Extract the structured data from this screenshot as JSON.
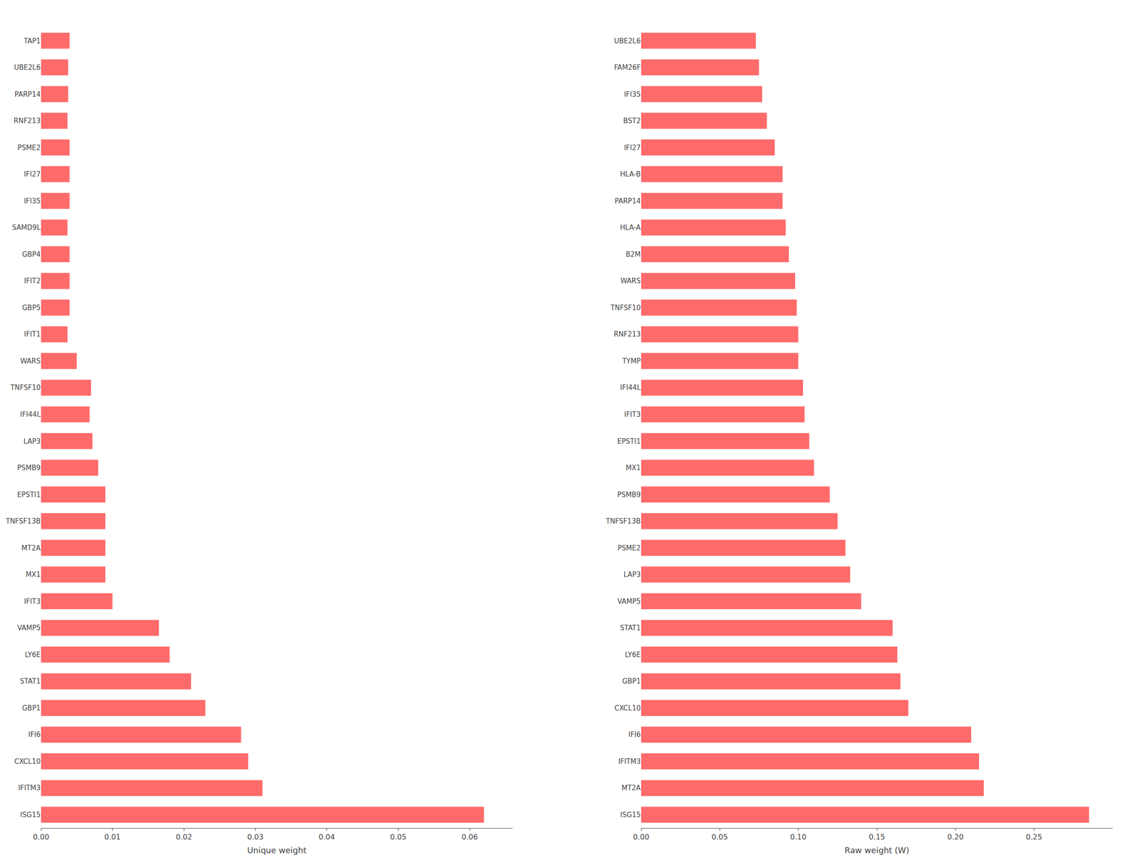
{
  "chart_data": [
    {
      "type": "bar",
      "orientation": "horizontal",
      "categories": [
        "TAP1",
        "UBE2L6",
        "PARP14",
        "RNF213",
        "PSME2",
        "IFI27",
        "IFI35",
        "SAMD9L",
        "GBP4",
        "IFIT2",
        "GBP5",
        "IFIT1",
        "WARS",
        "TNFSF10",
        "IFI44L",
        "LAP3",
        "PSMB9",
        "EPSTI1",
        "TNFSF13B",
        "MT2A",
        "MX1",
        "IFIT3",
        "VAMP5",
        "LY6E",
        "STAT1",
        "GBP1",
        "IFI6",
        "CXCL10",
        "IFITM3",
        "ISG15"
      ],
      "values": [
        0.004,
        0.0038,
        0.0038,
        0.0037,
        0.004,
        0.004,
        0.004,
        0.0037,
        0.004,
        0.004,
        0.004,
        0.0037,
        0.005,
        0.007,
        0.0068,
        0.0072,
        0.008,
        0.009,
        0.009,
        0.009,
        0.009,
        0.01,
        0.0165,
        0.018,
        0.021,
        0.023,
        0.028,
        0.029,
        0.031,
        0.062
      ],
      "color": "#FF6B6B",
      "xlabel": "Unique weight",
      "xlim": [
        0,
        0.066
      ],
      "xticks": [
        {
          "value": 0,
          "label": "0.00"
        },
        0.01,
        0.02,
        0.03,
        0.04,
        0.05,
        0.06
      ],
      "grid": false
    },
    {
      "type": "bar",
      "orientation": "horizontal",
      "categories": [
        "UBE2L6",
        "FAM26F",
        "IFI35",
        "BST2",
        "IFI27",
        "HLA-B",
        "PARP14",
        "HLA-A",
        "B2M",
        "WARS",
        "TNFSF10",
        "RNF213",
        "TYMP",
        "IFI44L",
        "IFIT3",
        "EPSTI1",
        "MX1",
        "PSMB9",
        "TNFSF13B",
        "PSME2",
        "LAP3",
        "VAMP5",
        "STAT1",
        "LY6E",
        "GBP1",
        "CXCL10",
        "IFI6",
        "IFITM3",
        "MT2A",
        "ISG15"
      ],
      "values": [
        0.073,
        0.075,
        0.077,
        0.08,
        0.085,
        0.09,
        0.09,
        0.092,
        0.094,
        0.098,
        0.099,
        0.1,
        0.1,
        0.103,
        0.104,
        0.107,
        0.11,
        0.12,
        0.125,
        0.13,
        0.133,
        0.14,
        0.16,
        0.163,
        0.165,
        0.17,
        0.21,
        0.215,
        0.218,
        0.285
      ],
      "color": "#FF6B6B",
      "xlabel": "Raw weight (W)",
      "xlim": [
        0,
        0.3
      ],
      "xticks": [
        {
          "value": 0,
          "label": "0.00"
        },
        0.05,
        {
          "value": 0.1,
          "label": "0.10"
        },
        0.15,
        {
          "value": 0.2,
          "label": "0.20"
        },
        0.25
      ],
      "grid": false
    }
  ]
}
